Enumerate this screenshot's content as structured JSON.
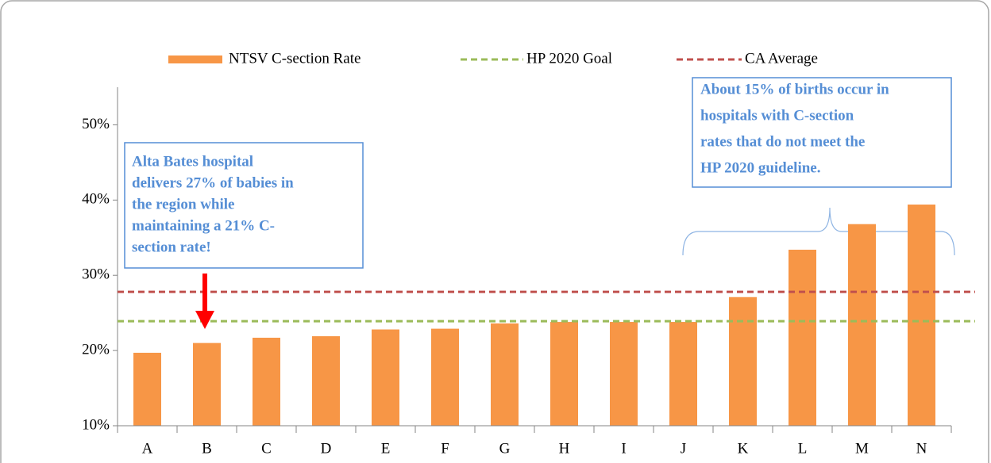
{
  "chart_data": {
    "type": "bar",
    "categories": [
      "A",
      "B",
      "C",
      "D",
      "E",
      "F",
      "G",
      "H",
      "I",
      "J",
      "K",
      "L",
      "M",
      "N"
    ],
    "series": [
      {
        "name": "NTSV C-section Rate",
        "color": "#f79646",
        "values": [
          19.7,
          21.0,
          21.7,
          21.9,
          22.8,
          22.9,
          23.6,
          23.8,
          23.8,
          23.8,
          27.1,
          33.4,
          36.8,
          39.4
        ]
      }
    ],
    "reference_lines": [
      {
        "name": "HP 2020 Goal",
        "color": "#9bbb59",
        "value": 23.9
      },
      {
        "name": "CA Average",
        "color": "#c0504d",
        "value": 27.8
      }
    ],
    "ylim": [
      10,
      55
    ],
    "yticks": [
      {
        "value": 10,
        "label": "10%"
      },
      {
        "value": 20,
        "label": "20%"
      },
      {
        "value": 30,
        "label": "30%"
      },
      {
        "value": 40,
        "label": "40%"
      },
      {
        "value": 50,
        "label": "50%"
      }
    ],
    "annotations": [
      {
        "lines": [
          "Alta Bates hospital",
          "delivers 27% of babies in",
          "the region while",
          "maintaining a 21% C-",
          "section rate!"
        ]
      },
      {
        "lines": [
          "About 15% of births occur in",
          "hospitals with C-section",
          "rates that do not meet the",
          "HP 2020 guideline."
        ]
      }
    ]
  }
}
